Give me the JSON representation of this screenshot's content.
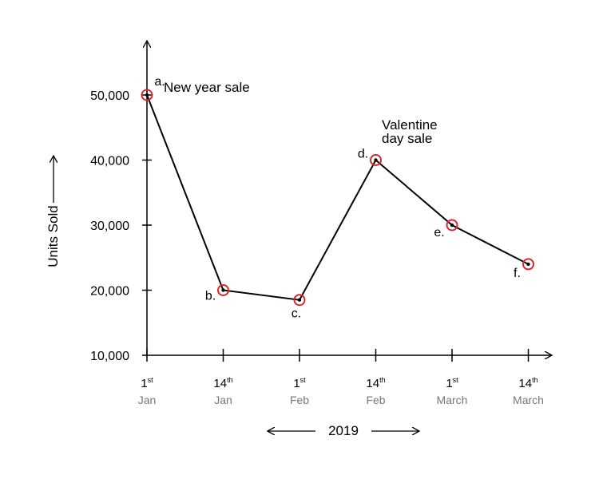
{
  "chart_data": {
    "type": "line",
    "title": "",
    "ylabel": "Units Sold",
    "xlabel": "2019",
    "ylim": [
      10000,
      55000
    ],
    "yticks": [
      {
        "value": 10000,
        "label": "10,000"
      },
      {
        "value": 20000,
        "label": "20,000"
      },
      {
        "value": 30000,
        "label": "30,000"
      },
      {
        "value": 40000,
        "label": "40,000"
      },
      {
        "value": 50000,
        "label": "50,000"
      }
    ],
    "categories": [
      {
        "day": "1",
        "suffix": "st",
        "month": "Jan"
      },
      {
        "day": "14",
        "suffix": "th",
        "month": "Jan"
      },
      {
        "day": "1",
        "suffix": "st",
        "month": "Feb"
      },
      {
        "day": "14",
        "suffix": "th",
        "month": "Feb"
      },
      {
        "day": "1",
        "suffix": "st",
        "month": "March"
      },
      {
        "day": "14",
        "suffix": "th",
        "month": "March"
      }
    ],
    "series": [
      {
        "values": [
          50000,
          20000,
          18500,
          40000,
          30000,
          24000
        ],
        "point_labels": [
          "a.",
          "b.",
          "c.",
          "d.",
          "e.",
          "f."
        ]
      }
    ],
    "annotations": [
      {
        "point": 0,
        "lines": [
          "New year sale"
        ]
      },
      {
        "point": 3,
        "lines": [
          "Valentine",
          "day sale"
        ]
      }
    ],
    "grid": false,
    "colors": {
      "line": "#000000",
      "marker": "#d62728",
      "axis": "#000000",
      "month_text": "#777777"
    }
  }
}
